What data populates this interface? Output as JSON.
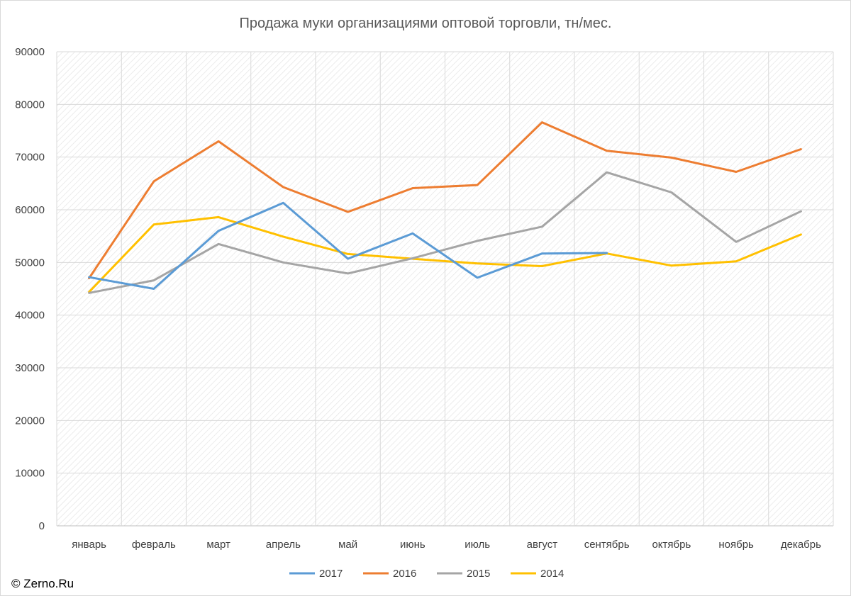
{
  "chart_data": {
    "type": "line",
    "title": "Продажа муки организациями оптовой торговли, тн/мес.",
    "xlabel": "",
    "ylabel": "",
    "categories": [
      "январь",
      "февраль",
      "март",
      "апрель",
      "май",
      "июнь",
      "июль",
      "август",
      "сентябрь",
      "октябрь",
      "ноябрь",
      "декабрь"
    ],
    "ylim": [
      0,
      90000
    ],
    "yticks": [
      0,
      10000,
      20000,
      30000,
      40000,
      50000,
      60000,
      70000,
      80000,
      90000
    ],
    "grid": true,
    "legend_position": "bottom",
    "series": [
      {
        "name": "2017",
        "color": "#5B9BD5",
        "values": [
          47200,
          45000,
          56000,
          61300,
          50700,
          55500,
          47100,
          51700,
          51800,
          null,
          null,
          null
        ]
      },
      {
        "name": "2016",
        "color": "#ED7D31",
        "values": [
          47000,
          65400,
          73000,
          64300,
          59600,
          64100,
          64700,
          76600,
          71200,
          69900,
          67200,
          71500
        ]
      },
      {
        "name": "2015",
        "color": "#A5A5A5",
        "values": [
          44200,
          46600,
          53500,
          50000,
          47900,
          50800,
          54100,
          56800,
          67100,
          63300,
          53900,
          59700
        ]
      },
      {
        "name": "2014",
        "color": "#FFC000",
        "values": [
          44400,
          57200,
          58600,
          54900,
          51600,
          50700,
          49800,
          49300,
          51700,
          49400,
          50200,
          55300
        ]
      }
    ]
  },
  "credit": "© Zerno.Ru"
}
